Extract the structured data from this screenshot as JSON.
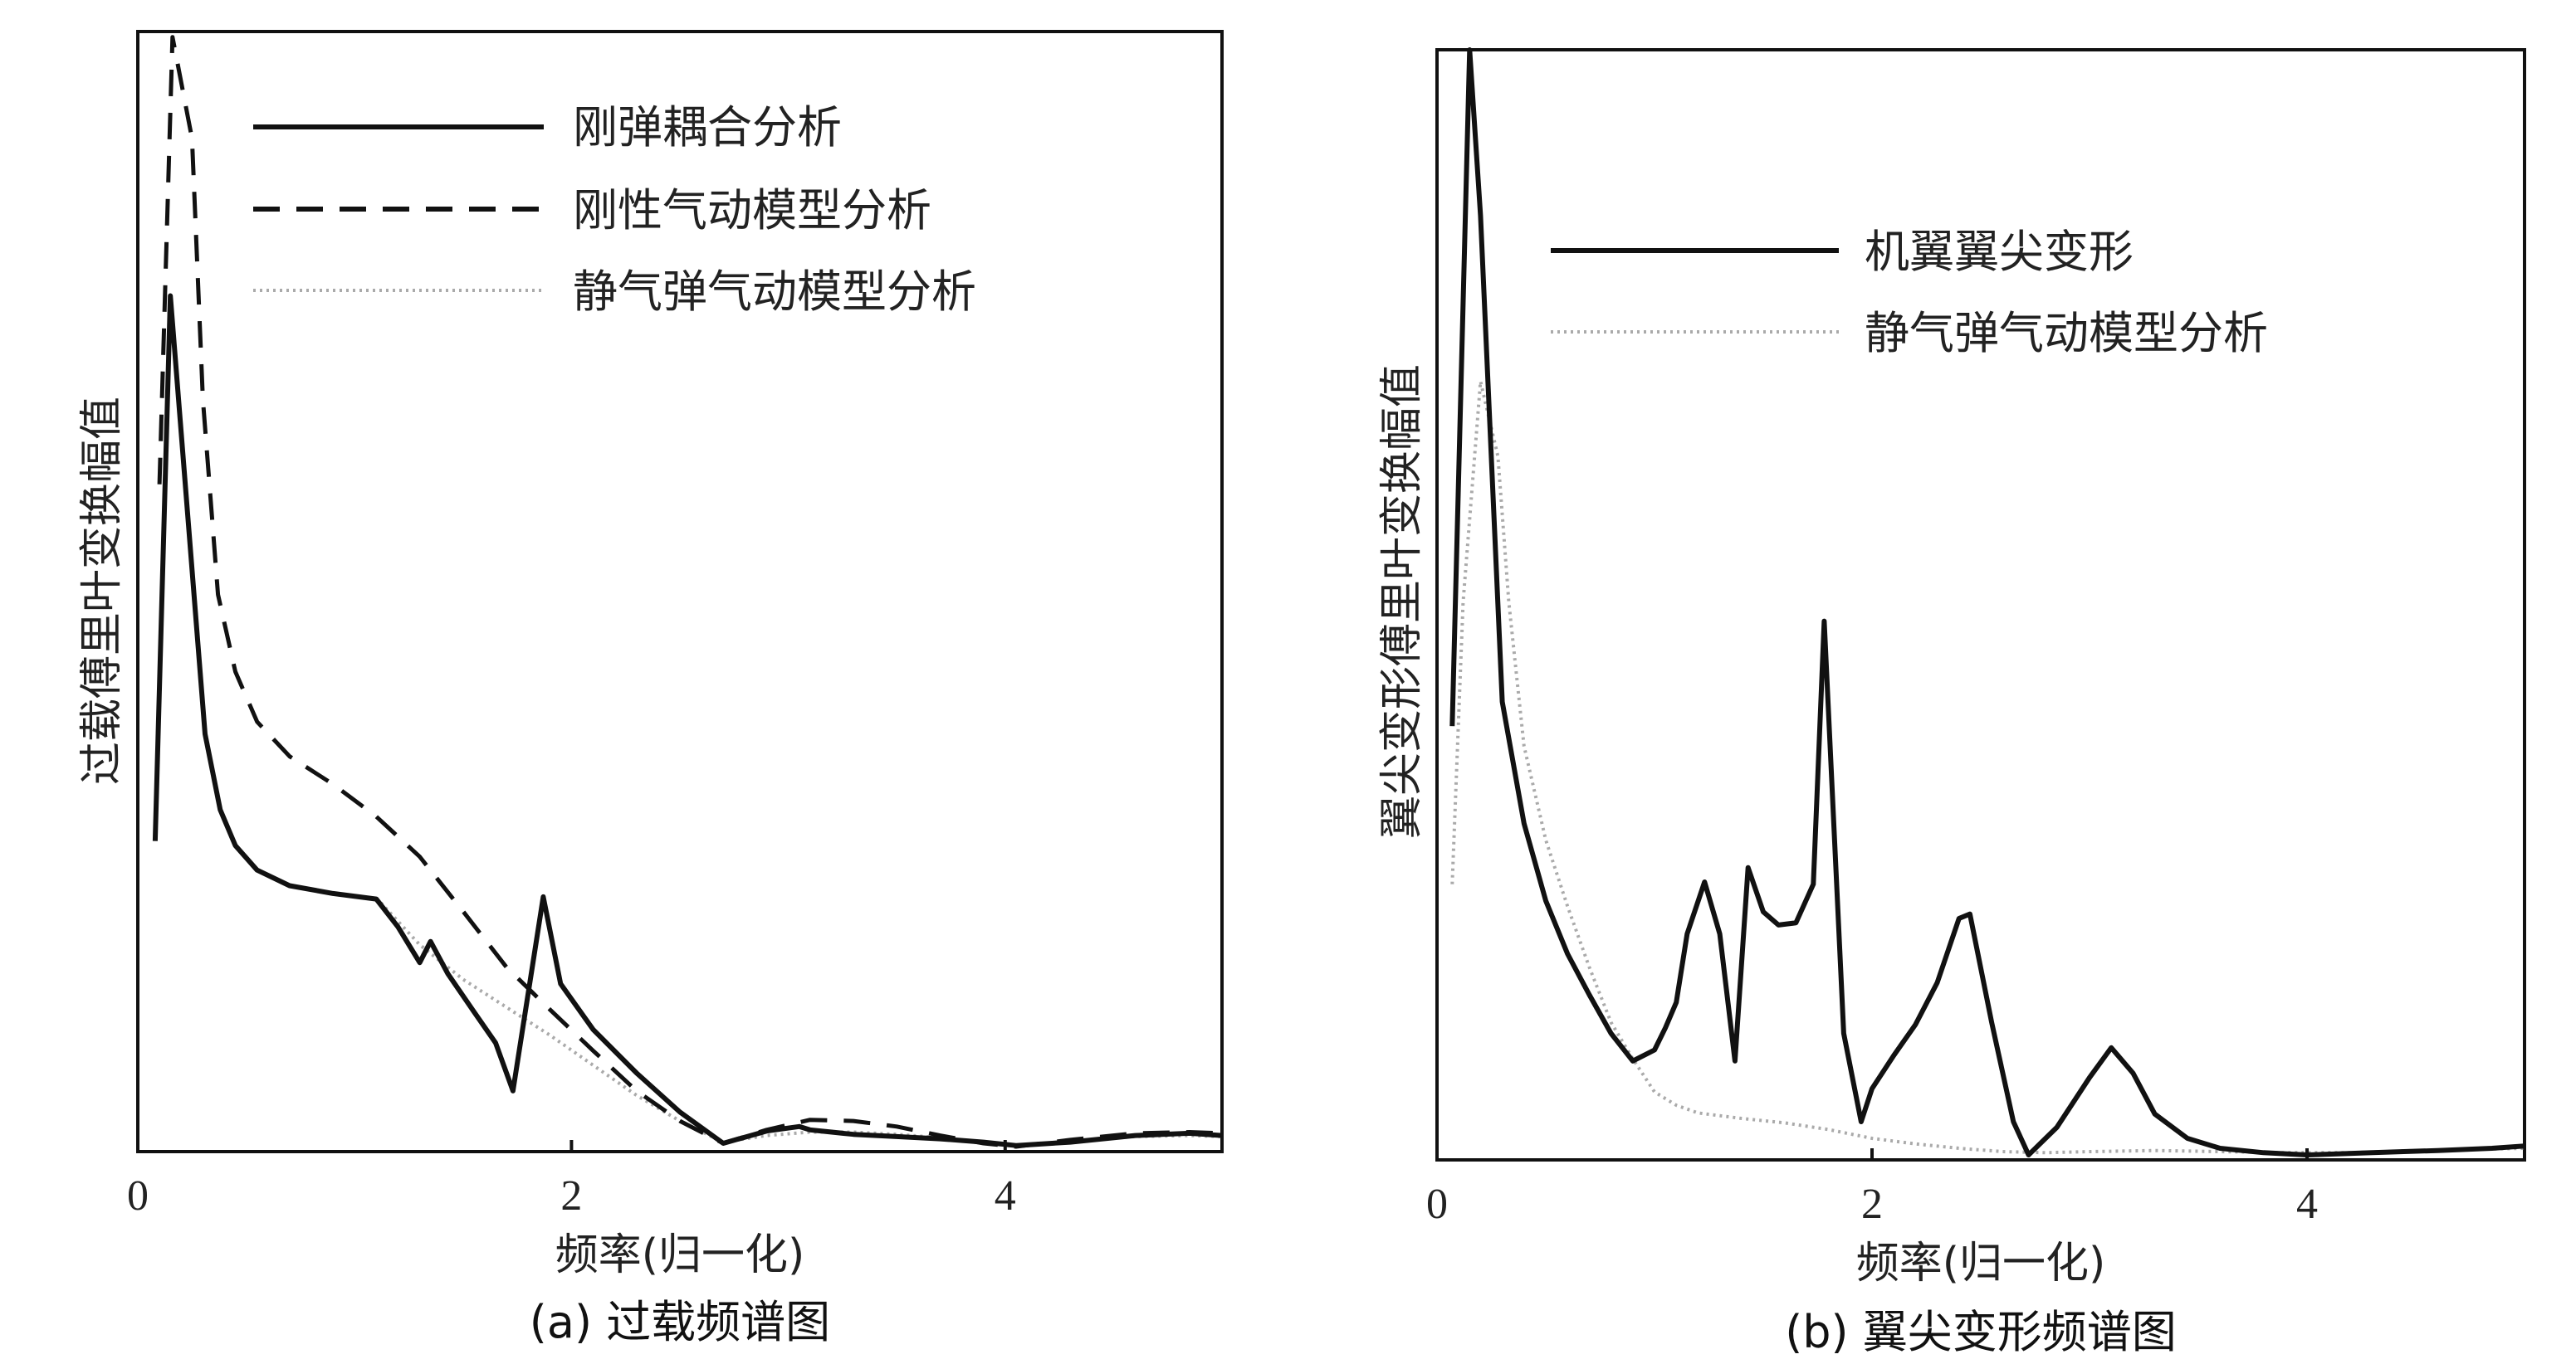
{
  "chart_data": [
    {
      "type": "line",
      "caption": "(a) 过载频谱图",
      "xlabel": "频率(归一化)",
      "ylabel": "过载傅里叶变换幅值",
      "xlim": [
        0,
        5
      ],
      "ylim": [
        0,
        1
      ],
      "xticks": [
        "0",
        "2",
        "4"
      ],
      "xtick_values": [
        0,
        2,
        4
      ],
      "y_tick_labels": "none",
      "grid": false,
      "legend_position": "top-right",
      "series": [
        {
          "name": "刚弹耦合分析",
          "style": "solid",
          "color": "#111111",
          "points": [
            [
              0.08,
              0.274
            ],
            [
              0.15,
              0.763
            ],
            [
              0.31,
              0.37
            ],
            [
              0.38,
              0.302
            ],
            [
              0.45,
              0.27
            ],
            [
              0.55,
              0.248
            ],
            [
              0.7,
              0.234
            ],
            [
              0.9,
              0.227
            ],
            [
              1.1,
              0.222
            ],
            [
              1.2,
              0.197
            ],
            [
              1.3,
              0.165
            ],
            [
              1.35,
              0.184
            ],
            [
              1.43,
              0.155
            ],
            [
              1.55,
              0.121
            ],
            [
              1.65,
              0.093
            ],
            [
              1.73,
              0.05
            ],
            [
              1.87,
              0.224
            ],
            [
              1.95,
              0.146
            ],
            [
              2.1,
              0.105
            ],
            [
              2.3,
              0.066
            ],
            [
              2.5,
              0.031
            ],
            [
              2.7,
              0.003
            ],
            [
              2.9,
              0.014
            ],
            [
              3.05,
              0.018
            ],
            [
              3.1,
              0.015
            ],
            [
              3.3,
              0.011
            ],
            [
              3.5,
              0.009
            ],
            [
              3.7,
              0.007
            ],
            [
              3.9,
              0.004
            ],
            [
              4.05,
              0.001
            ],
            [
              4.3,
              0.004
            ],
            [
              4.6,
              0.01
            ],
            [
              4.85,
              0.012
            ],
            [
              5.0,
              0.01
            ]
          ]
        },
        {
          "name": "刚性气动模型分析",
          "style": "dashed",
          "color": "#111111",
          "points": [
            [
              0.1,
              0.594
            ],
            [
              0.16,
              0.995
            ],
            [
              0.25,
              0.904
            ],
            [
              0.3,
              0.67
            ],
            [
              0.37,
              0.495
            ],
            [
              0.45,
              0.426
            ],
            [
              0.55,
              0.381
            ],
            [
              0.7,
              0.35
            ],
            [
              0.9,
              0.325
            ],
            [
              1.1,
              0.296
            ],
            [
              1.3,
              0.26
            ],
            [
              1.5,
              0.211
            ],
            [
              1.7,
              0.161
            ],
            [
              1.9,
              0.123
            ],
            [
              2.1,
              0.086
            ],
            [
              2.3,
              0.05
            ],
            [
              2.5,
              0.023
            ],
            [
              2.7,
              0.003
            ],
            [
              2.9,
              0.015
            ],
            [
              3.1,
              0.024
            ],
            [
              3.3,
              0.023
            ],
            [
              3.5,
              0.018
            ],
            [
              3.7,
              0.01
            ],
            [
              3.9,
              0.003
            ],
            [
              4.05,
              0.0
            ],
            [
              4.3,
              0.006
            ],
            [
              4.6,
              0.012
            ],
            [
              4.85,
              0.013
            ],
            [
              5.0,
              0.012
            ]
          ]
        },
        {
          "name": "静气弹气动模型分析",
          "style": "dotted",
          "color": "#aaaaaa",
          "points": [
            [
              1.1,
              0.223
            ],
            [
              1.3,
              0.181
            ],
            [
              1.5,
              0.15
            ],
            [
              1.7,
              0.125
            ],
            [
              1.9,
              0.1
            ],
            [
              2.1,
              0.073
            ],
            [
              2.3,
              0.046
            ],
            [
              2.5,
              0.023
            ],
            [
              2.7,
              0.004
            ],
            [
              2.9,
              0.01
            ],
            [
              3.1,
              0.013
            ],
            [
              3.3,
              0.013
            ],
            [
              3.5,
              0.011
            ],
            [
              3.7,
              0.008
            ],
            [
              3.9,
              0.004
            ],
            [
              4.05,
              0.001
            ],
            [
              4.3,
              0.005
            ],
            [
              4.6,
              0.009
            ],
            [
              4.85,
              0.01
            ],
            [
              5.0,
              0.009
            ]
          ]
        }
      ]
    },
    {
      "type": "line",
      "caption": "(b) 翼尖变形频谱图",
      "xlabel": "频率(归一化)",
      "ylabel": "翼尖变形傅里叶变换幅值",
      "xlim": [
        0,
        5
      ],
      "ylim": [
        0,
        1
      ],
      "xticks": [
        "0",
        "2",
        "4"
      ],
      "xtick_values": [
        0,
        2,
        4
      ],
      "y_tick_labels": "none",
      "grid": false,
      "legend_position": "top-right",
      "series": [
        {
          "name": "机翼翼尖变形",
          "style": "solid",
          "color": "#111111",
          "points": [
            [
              0.07,
              0.388
            ],
            [
              0.15,
              1.0
            ],
            [
              0.2,
              0.85
            ],
            [
              0.3,
              0.41
            ],
            [
              0.4,
              0.3
            ],
            [
              0.5,
              0.23
            ],
            [
              0.6,
              0.182
            ],
            [
              0.7,
              0.145
            ],
            [
              0.8,
              0.11
            ],
            [
              0.9,
              0.085
            ],
            [
              1.0,
              0.095
            ],
            [
              1.05,
              0.115
            ],
            [
              1.1,
              0.138
            ],
            [
              1.15,
              0.2
            ],
            [
              1.23,
              0.247
            ],
            [
              1.3,
              0.2
            ],
            [
              1.37,
              0.085
            ],
            [
              1.43,
              0.26
            ],
            [
              1.5,
              0.22
            ],
            [
              1.57,
              0.208
            ],
            [
              1.65,
              0.21
            ],
            [
              1.73,
              0.245
            ],
            [
              1.78,
              0.483
            ],
            [
              1.87,
              0.11
            ],
            [
              1.95,
              0.03
            ],
            [
              2.0,
              0.06
            ],
            [
              2.1,
              0.09
            ],
            [
              2.2,
              0.118
            ],
            [
              2.3,
              0.156
            ],
            [
              2.4,
              0.214
            ],
            [
              2.45,
              0.218
            ],
            [
              2.55,
              0.12
            ],
            [
              2.65,
              0.03
            ],
            [
              2.72,
              0.0
            ],
            [
              2.85,
              0.025
            ],
            [
              3.0,
              0.07
            ],
            [
              3.1,
              0.097
            ],
            [
              3.2,
              0.074
            ],
            [
              3.3,
              0.037
            ],
            [
              3.45,
              0.015
            ],
            [
              3.6,
              0.006
            ],
            [
              3.8,
              0.002
            ],
            [
              4.0,
              0.0
            ],
            [
              4.3,
              0.002
            ],
            [
              4.6,
              0.004
            ],
            [
              4.85,
              0.006
            ],
            [
              5.0,
              0.008
            ]
          ]
        },
        {
          "name": "静气弹气动模型分析",
          "style": "dotted",
          "color": "#aaaaaa",
          "points": [
            [
              0.07,
              0.245
            ],
            [
              0.12,
              0.5
            ],
            [
              0.2,
              0.7
            ],
            [
              0.28,
              0.632
            ],
            [
              0.33,
              0.5
            ],
            [
              0.4,
              0.37
            ],
            [
              0.5,
              0.285
            ],
            [
              0.6,
              0.225
            ],
            [
              0.7,
              0.17
            ],
            [
              0.8,
              0.12
            ],
            [
              0.9,
              0.087
            ],
            [
              1.0,
              0.057
            ],
            [
              1.1,
              0.045
            ],
            [
              1.2,
              0.038
            ],
            [
              1.4,
              0.033
            ],
            [
              1.6,
              0.029
            ],
            [
              1.8,
              0.023
            ],
            [
              2.0,
              0.015
            ],
            [
              2.2,
              0.01
            ],
            [
              2.4,
              0.006
            ],
            [
              2.6,
              0.003
            ],
            [
              2.8,
              0.002
            ],
            [
              3.0,
              0.003
            ],
            [
              3.3,
              0.004
            ],
            [
              3.6,
              0.003
            ],
            [
              3.9,
              0.002
            ],
            [
              4.2,
              0.002
            ],
            [
              4.5,
              0.004
            ],
            [
              5.0,
              0.006
            ]
          ]
        }
      ]
    }
  ]
}
